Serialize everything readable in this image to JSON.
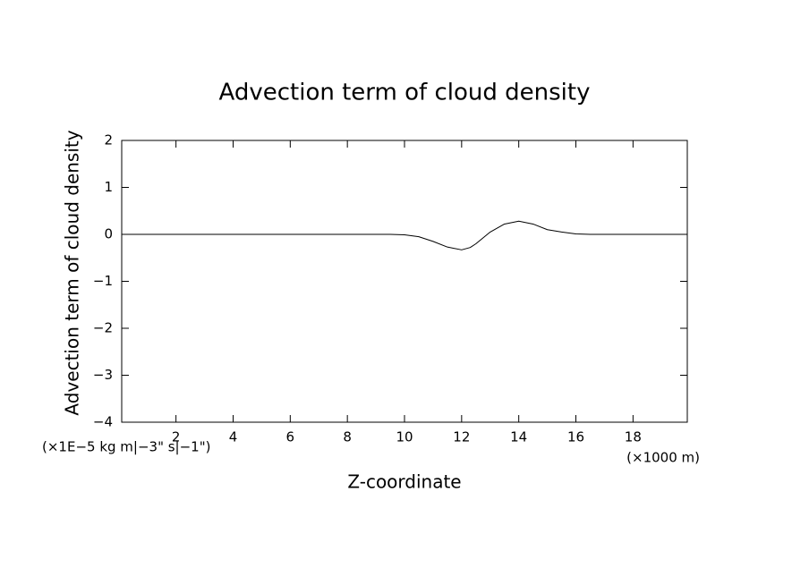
{
  "chart_data": {
    "type": "line",
    "title": "Advection term of cloud density",
    "x_label": "Z-coordinate",
    "y_label": "Advection term of cloud density",
    "x_unit": "(×1000 m)",
    "y_unit": "(×1E−5 kg m|−3\" s|−1\")",
    "x": [
      0.1,
      2,
      4,
      6,
      8,
      9.5,
      10,
      10.5,
      11,
      11.5,
      12,
      12.3,
      12.5,
      13,
      13.5,
      14,
      14.5,
      15,
      15.5,
      16,
      16.5,
      18,
      19.9
    ],
    "series": [
      {
        "name": "advection",
        "color": "#000000",
        "values": [
          0,
          0,
          0,
          0,
          0,
          0,
          -0.01,
          -0.05,
          -0.15,
          -0.27,
          -0.33,
          -0.28,
          -0.2,
          0.05,
          0.22,
          0.28,
          0.22,
          0.1,
          0.05,
          0.01,
          0,
          0,
          0
        ]
      }
    ],
    "xlim": [
      0.1,
      19.9
    ],
    "ylim": [
      -4,
      2
    ],
    "xticks": [
      2,
      4,
      6,
      8,
      10,
      12,
      14,
      16,
      18
    ],
    "yticks": [
      {
        "value": -4,
        "label": "−4"
      },
      {
        "value": -3,
        "label": "−3"
      },
      {
        "value": -2,
        "label": "−2"
      },
      {
        "value": -1,
        "label": "−1"
      },
      0,
      1,
      2
    ],
    "grid": false
  }
}
